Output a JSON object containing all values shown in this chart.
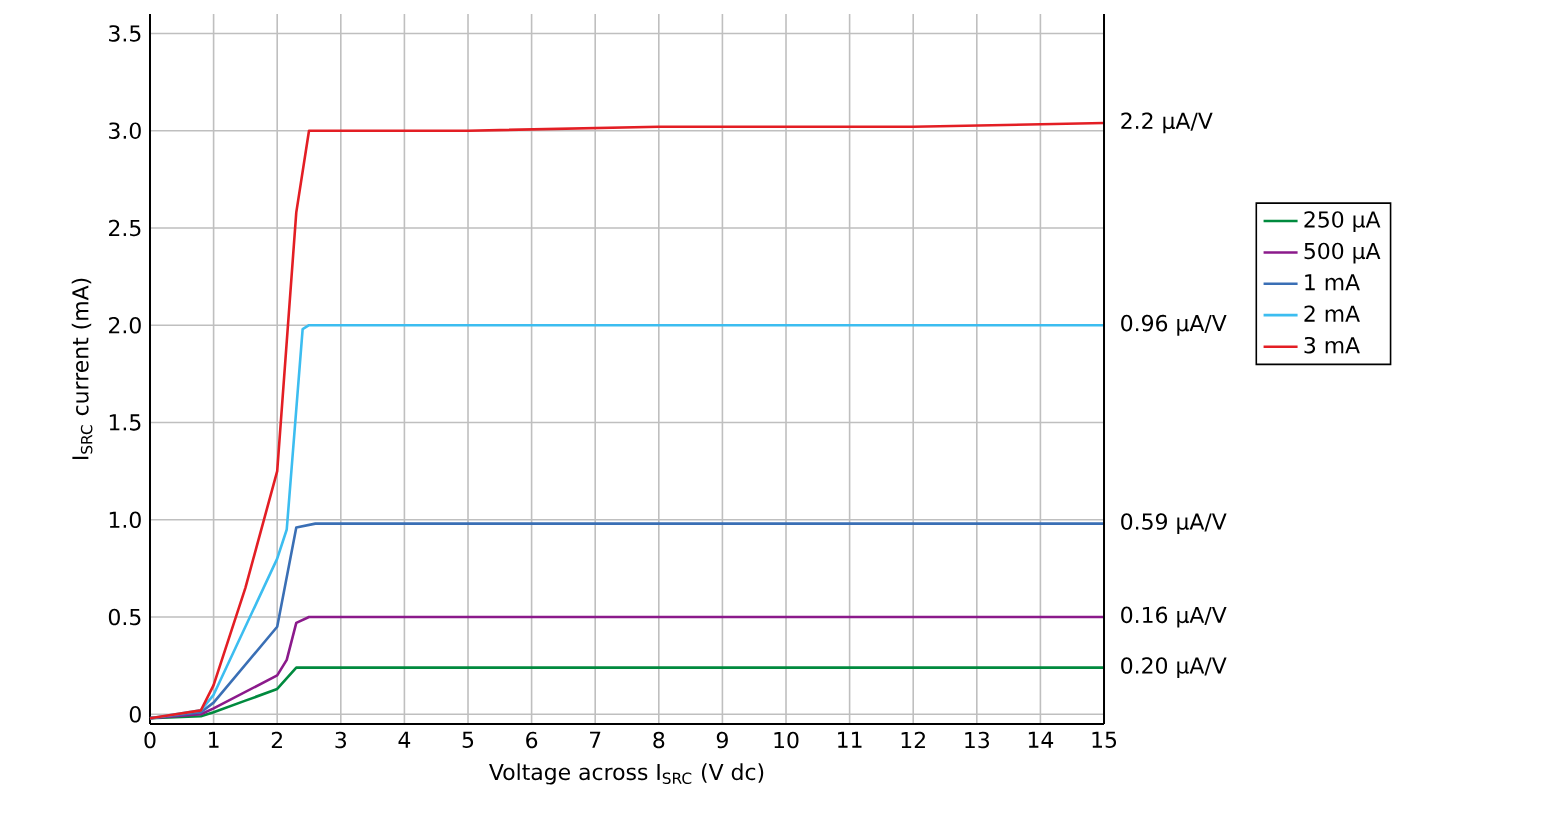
{
  "chart_data": {
    "type": "line",
    "xlabel": "Voltage across I$_{SRC}$ (V dc)",
    "ylabel": "I$_{SRC}$ current (mA)",
    "series": [
      {
        "name": "250 µA",
        "color": "#008a3e",
        "x": [
          0,
          0.8,
          1,
          1.5,
          2,
          2.3,
          2.5,
          15
        ],
        "values": [
          -0.02,
          -0.01,
          0.01,
          0.07,
          0.13,
          0.24,
          0.24,
          0.24
        ]
      },
      {
        "name": "500 µA",
        "color": "#8b1a8b",
        "x": [
          0,
          0.8,
          1,
          2,
          2.15,
          2.3,
          2.5,
          15
        ],
        "values": [
          -0.02,
          0,
          0.03,
          0.2,
          0.28,
          0.47,
          0.5,
          0.5
        ]
      },
      {
        "name": "1 mA",
        "color": "#3a6fb5",
        "x": [
          0,
          0.8,
          1,
          2,
          2.3,
          2.6,
          15
        ],
        "values": [
          -0.02,
          0.01,
          0.06,
          0.45,
          0.96,
          0.98,
          0.98
        ]
      },
      {
        "name": "2 mA",
        "color": "#3cbdf0",
        "x": [
          0,
          0.8,
          1,
          2,
          2.15,
          2.4,
          2.5,
          15
        ],
        "values": [
          -0.02,
          0.02,
          0.1,
          0.8,
          0.95,
          1.98,
          2.0,
          2.0
        ]
      },
      {
        "name": "3 mA",
        "color": "#e31e24",
        "x": [
          0,
          0.8,
          1,
          1.5,
          2,
          2.3,
          2.5,
          5,
          8,
          12,
          15
        ],
        "values": [
          -0.02,
          0.02,
          0.15,
          0.65,
          1.25,
          2.58,
          3.0,
          3.0,
          3.02,
          3.02,
          3.04
        ]
      }
    ],
    "xlim": [
      0,
      15
    ],
    "ylim": [
      -0.05,
      3.6
    ],
    "xticks": [
      0,
      1,
      2,
      3,
      4,
      5,
      6,
      7,
      8,
      9,
      10,
      11,
      12,
      13,
      14,
      15
    ],
    "yticks": [
      {
        "value": 0,
        "label": "0"
      },
      {
        "value": 0.5,
        "label": "0.5"
      },
      {
        "value": 1,
        "label": "1.0"
      },
      {
        "value": 1.5,
        "label": "1.5"
      },
      {
        "value": 2,
        "label": "2.0"
      },
      {
        "value": 2.5,
        "label": "2.5"
      },
      {
        "value": 3,
        "label": "3.0"
      },
      {
        "value": 3.5,
        "label": "3.5"
      }
    ],
    "annotations": [
      "2.2 µA/V",
      "0.96 µA/V",
      "0.59 µA/V",
      "0.16 µA/V",
      "0.20 µA/V"
    ],
    "grid": true,
    "legend": "right",
    "marker": "none",
    "line_style": "solid"
  }
}
